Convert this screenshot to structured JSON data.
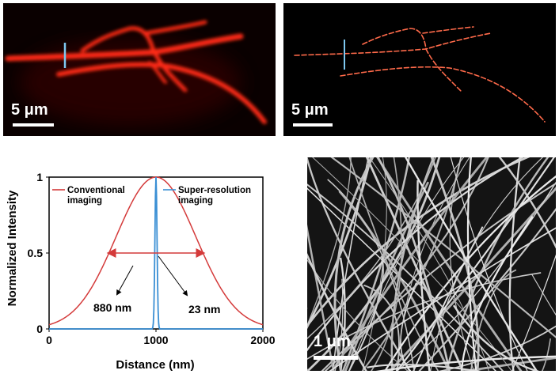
{
  "figure": {
    "panel_a": {
      "scalebar_label": "5 μm"
    },
    "panel_b": {
      "scalebar_label": "5 μm"
    },
    "panel_d": {
      "scalebar_label": "1 μm"
    }
  },
  "chart_data": {
    "type": "line",
    "xlabel": "Distance (nm)",
    "ylabel": "Normalized Intensity",
    "xlim": [
      0,
      2000
    ],
    "ylim": [
      0,
      1
    ],
    "x_ticks": [
      "0",
      "1000",
      "2000"
    ],
    "y_ticks": [
      "0",
      "0.5",
      "1"
    ],
    "legend": [
      {
        "text_lines": [
          "Conventional",
          "imaging"
        ],
        "color": "#d43a3a"
      },
      {
        "text_lines": [
          "Super-resolution",
          "imaging"
        ],
        "color": "#3a8fd4"
      }
    ],
    "series": [
      {
        "name": "Conventional imaging",
        "color": "#d43a3a",
        "center": 1000,
        "fwhm": 880
      },
      {
        "name": "Super-resolution imaging",
        "color": "#3a8fd4",
        "center": 1000,
        "fwhm": 23
      }
    ],
    "annotations": [
      {
        "text": "880 nm",
        "width_nm": 880
      },
      {
        "text": "23 nm",
        "width_nm": 23
      }
    ]
  }
}
